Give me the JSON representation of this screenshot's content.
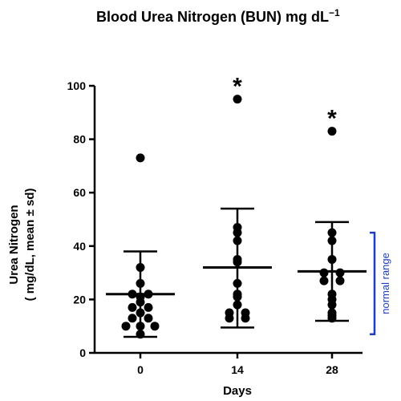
{
  "chart_data": {
    "type": "scatter",
    "title_main": "Blood Urea Nitrogen (BUN) mg dL",
    "title_sup": "−1",
    "xlabel": "Days",
    "ylabel_line1": "Urea Nitrogen",
    "ylabel_line2": "( mg/dL, mean ± sd)",
    "ylim": [
      0,
      100
    ],
    "yticks": [
      0,
      20,
      40,
      60,
      80,
      100
    ],
    "categories": [
      "0",
      "14",
      "28"
    ],
    "groups": [
      {
        "category": "0",
        "mean": 22,
        "sd_low": 6,
        "sd_high": 38,
        "significant": false,
        "points": [
          73,
          32,
          26,
          22,
          22,
          21,
          19,
          17,
          17,
          15,
          13,
          13,
          10,
          10,
          10,
          7
        ]
      },
      {
        "category": "14",
        "mean": 32,
        "sd_low": 9.5,
        "sd_high": 54,
        "significant": true,
        "points": [
          95,
          47,
          45,
          42,
          35,
          34,
          26,
          22,
          21,
          18,
          15,
          15,
          13,
          13
        ]
      },
      {
        "category": "28",
        "mean": 30.5,
        "sd_low": 12,
        "sd_high": 49,
        "significant": true,
        "points": [
          83,
          45,
          42,
          35,
          30,
          30,
          27,
          27,
          22,
          20,
          18,
          15,
          14,
          13
        ]
      }
    ],
    "significance_marker": "*",
    "normal_range": {
      "label": "normal range",
      "low": 7,
      "high": 45,
      "color": "#1f3fbf"
    },
    "grid": false
  }
}
